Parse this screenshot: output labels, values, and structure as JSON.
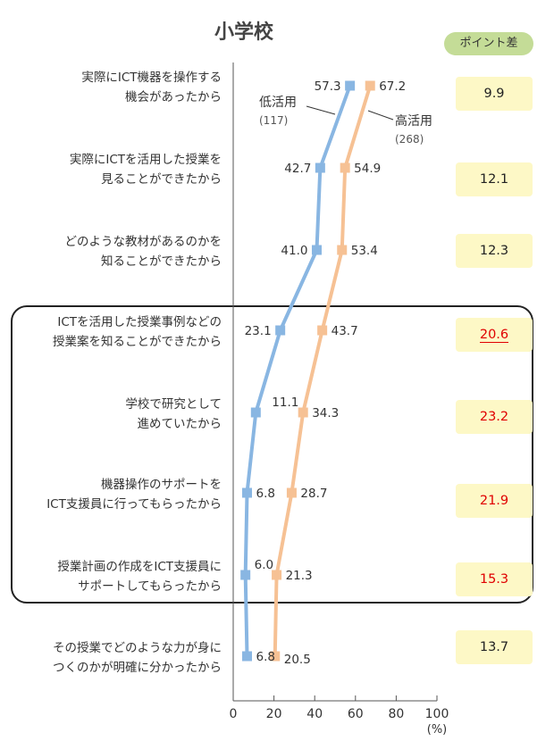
{
  "chart_data": {
    "type": "line",
    "title": "小学校",
    "orientation": "horizontal",
    "categories": [
      [
        "実際にICT機器を操作する",
        "機会があったから"
      ],
      [
        "実際にICTを活用した授業を",
        "見ることができたから"
      ],
      [
        "どのような教材があるのかを",
        "知ることができたから"
      ],
      [
        "ICTを活用した授業事例などの",
        "授業案を知ることができたから"
      ],
      [
        "学校で研究として",
        "進めていたから"
      ],
      [
        "機器操作のサポートを",
        "ICT支援員に行ってもらったから"
      ],
      [
        "授業計画の作成をICT支援員に",
        "サポートしてもらったから"
      ],
      [
        "その授業でどのような力が身に",
        "つくのかが明確に分かったから"
      ]
    ],
    "series": [
      {
        "name": "低活用",
        "n_label": "(117)",
        "color": "#89b6e2",
        "values": [
          57.3,
          42.7,
          41.0,
          23.1,
          11.1,
          6.8,
          6.0,
          6.8
        ],
        "labels": [
          "57.3",
          "42.7",
          "41.0",
          "23.1",
          "11.1",
          "6.8",
          "6.0",
          "6.8"
        ]
      },
      {
        "name": "高活用",
        "n_label": "(268)",
        "color": "#f6c194",
        "values": [
          67.2,
          54.9,
          53.4,
          43.7,
          34.3,
          28.7,
          21.3,
          20.5
        ],
        "labels": [
          "67.2",
          "54.9",
          "53.4",
          "43.7",
          "34.3",
          "28.7",
          "21.3",
          "20.5"
        ]
      }
    ],
    "diff_header": "ポイント差",
    "differences": [
      {
        "value": "9.9",
        "highlight": false,
        "underline": false
      },
      {
        "value": "12.1",
        "highlight": false,
        "underline": false
      },
      {
        "value": "12.3",
        "highlight": false,
        "underline": false
      },
      {
        "value": "20.6",
        "highlight": true,
        "underline": true
      },
      {
        "value": "23.2",
        "highlight": true,
        "underline": false
      },
      {
        "value": "21.9",
        "highlight": true,
        "underline": false
      },
      {
        "value": "15.3",
        "highlight": true,
        "underline": false
      },
      {
        "value": "13.7",
        "highlight": false,
        "underline": false
      }
    ],
    "highlight_color": "#e00000",
    "diff_box_color": "#fdf8c6",
    "boxed_categories": [
      3,
      4,
      5,
      6
    ],
    "xlim": [
      0,
      100
    ],
    "xticks": [
      "0",
      "20",
      "40",
      "60",
      "80",
      "100"
    ],
    "xunit": "(%)"
  }
}
